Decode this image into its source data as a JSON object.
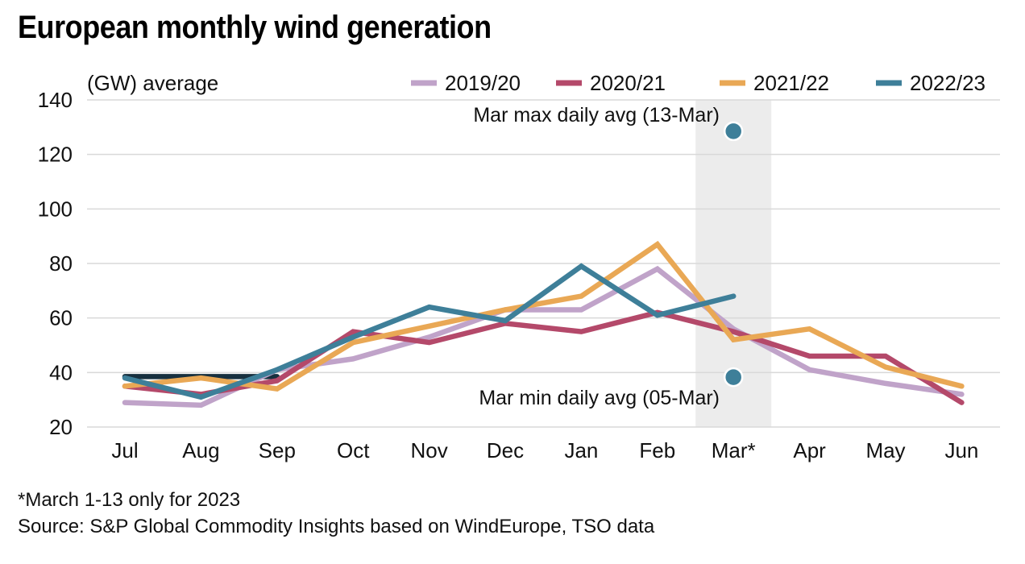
{
  "chart_data": {
    "type": "line",
    "title": "European monthly wind generation",
    "ylabel": "(GW) average",
    "xlabel": "",
    "ylim": [
      20,
      140
    ],
    "yticks": [
      20,
      40,
      60,
      80,
      100,
      120,
      140
    ],
    "grid": true,
    "legend_position": "top-right",
    "categories": [
      "Jul",
      "Aug",
      "Sep",
      "Oct",
      "Nov",
      "Dec",
      "Jan",
      "Feb",
      "Mar*",
      "Apr",
      "May",
      "Jun"
    ],
    "series": [
      {
        "name": "",
        "color": "#17303f",
        "legend": false,
        "values": [
          38.5,
          38.5,
          38.5,
          null,
          null,
          null,
          null,
          null,
          null,
          null,
          null,
          null
        ]
      },
      {
        "name": "2019/20",
        "color": "#c0a3c9",
        "legend": true,
        "values": [
          29,
          28,
          41,
          45,
          53,
          63,
          63,
          78,
          56,
          41,
          36,
          32
        ]
      },
      {
        "name": "2020/21",
        "color": "#b4496a",
        "legend": true,
        "values": [
          35,
          32,
          37,
          55,
          51,
          58,
          55,
          62,
          55,
          46,
          46,
          29
        ]
      },
      {
        "name": "2021/22",
        "color": "#e9a855",
        "legend": true,
        "values": [
          35,
          38,
          34,
          51,
          57,
          63,
          68,
          87,
          52,
          56,
          42,
          35
        ]
      },
      {
        "name": "2022/23",
        "color": "#3e7f99",
        "legend": true,
        "values": [
          38,
          31,
          41,
          53,
          64,
          59,
          79,
          61,
          68,
          null,
          null,
          null
        ]
      }
    ],
    "highlight_band": {
      "category": "Mar*",
      "color": "#ececec"
    },
    "points": [
      {
        "name": "Mar max daily avg (13-Mar)",
        "category": "Mar*",
        "value": 128.5,
        "color": "#3e7f99"
      },
      {
        "name": "Mar min daily avg (05-Mar)",
        "category": "Mar*",
        "value": 38.3,
        "color": "#3e7f99"
      }
    ],
    "annotations": {
      "max": "Mar max daily avg (13-Mar)",
      "min": "Mar min daily avg (05-Mar)"
    }
  },
  "footer": {
    "footnote": "*March 1-13 only for 2023",
    "source": "Source: S&P Global Commodity Insights based on WindEurope, TSO data"
  }
}
